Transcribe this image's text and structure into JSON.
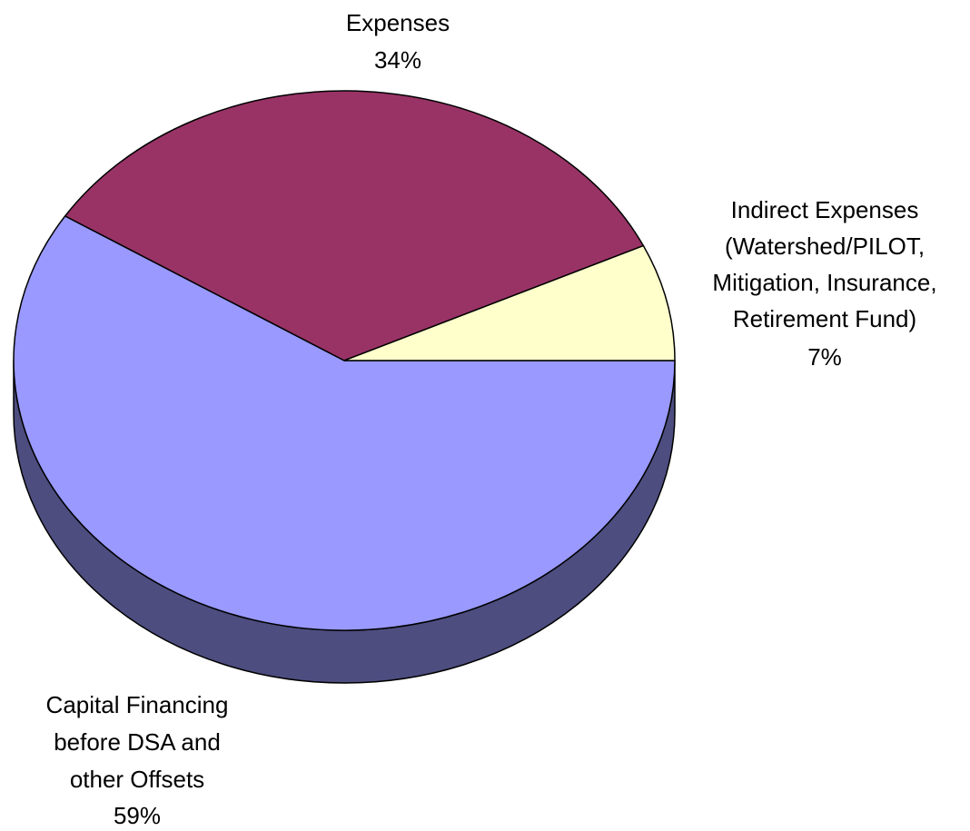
{
  "chart_data": {
    "type": "pie",
    "style": "3d",
    "title": "",
    "slices": [
      {
        "id": "expenses",
        "label_lines": [
          "Expenses"
        ],
        "percent_label": "34%",
        "value": 34,
        "color": "#993366",
        "side_color": "#5e1f40"
      },
      {
        "id": "indirect",
        "label_lines": [
          "Indirect Expenses",
          "(Watershed/PILOT,",
          "Mitigation, Insurance,",
          "Retirement Fund)"
        ],
        "percent_label": "7%",
        "value": 7,
        "color": "#ffffcc",
        "side_color": "#b3b38f"
      },
      {
        "id": "capital",
        "label_lines": [
          "Capital Financing",
          "before DSA and",
          "other Offsets"
        ],
        "percent_label": "59%",
        "value": 59,
        "color": "#9999ff",
        "side_color": "#4d4d80"
      }
    ]
  }
}
